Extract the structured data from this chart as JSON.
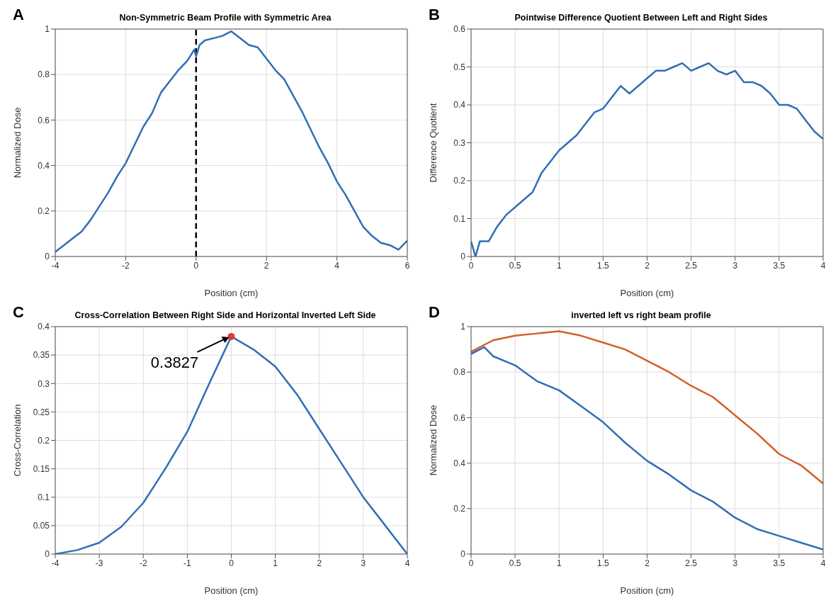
{
  "chart_data": [
    {
      "type": "line",
      "title": "Non-Symmetric Beam Profile with Symmetric Area",
      "xlabel": "Position (cm)",
      "ylabel": "Normalized Dose",
      "annotations": [
        "A"
      ],
      "xlim": [
        -4,
        6
      ],
      "xticks": [
        -4,
        -2,
        0,
        2,
        4,
        6
      ],
      "ylim": [
        0,
        1
      ],
      "yticks": [
        0,
        0.2,
        0.4,
        0.6,
        0.8,
        1
      ],
      "grid": true,
      "ref_lines": [
        {
          "axis": "x",
          "value": 0,
          "color": "#000000",
          "line_style": "dashed"
        }
      ],
      "series": [
        {
          "color": "#2f6fb5",
          "x": [
            -4,
            -3.75,
            -3.5,
            -3.25,
            -3,
            -2.75,
            -2.5,
            -2.25,
            -2,
            -1.75,
            -1.5,
            -1.25,
            -1,
            -0.75,
            -0.5,
            -0.25,
            -0.05,
            0,
            0.1,
            0.25,
            0.5,
            0.75,
            1,
            1.25,
            1.5,
            1.75,
            2,
            2.25,
            2.5,
            2.75,
            3,
            3.25,
            3.5,
            3.75,
            4,
            4.25,
            4.5,
            4.75,
            5,
            5.25,
            5.5,
            5.75,
            6
          ],
          "values": [
            0.02,
            0.05,
            0.08,
            0.11,
            0.16,
            0.22,
            0.28,
            0.35,
            0.41,
            0.49,
            0.57,
            0.63,
            0.72,
            0.77,
            0.82,
            0.86,
            0.91,
            0.88,
            0.93,
            0.95,
            0.96,
            0.97,
            0.99,
            0.96,
            0.93,
            0.92,
            0.87,
            0.82,
            0.78,
            0.71,
            0.64,
            0.56,
            0.48,
            0.41,
            0.33,
            0.27,
            0.2,
            0.13,
            0.09,
            0.06,
            0.05,
            0.03,
            0.07
          ]
        }
      ]
    },
    {
      "type": "line",
      "title": "Pointwise Difference Quotient Between Left and Right Sides",
      "xlabel": "Position (cm)",
      "ylabel": "Difference Quotient",
      "annotations": [
        "B"
      ],
      "xlim": [
        0,
        4
      ],
      "xticks": [
        0,
        0.5,
        1,
        1.5,
        2,
        2.5,
        3,
        3.5,
        4
      ],
      "ylim": [
        0,
        0.6
      ],
      "yticks": [
        0,
        0.1,
        0.2,
        0.3,
        0.4,
        0.5,
        0.6
      ],
      "grid": true,
      "series": [
        {
          "color": "#2f6fb5",
          "x": [
            0,
            0.05,
            0.1,
            0.2,
            0.3,
            0.4,
            0.5,
            0.6,
            0.7,
            0.8,
            0.9,
            1,
            1.1,
            1.2,
            1.3,
            1.4,
            1.5,
            1.6,
            1.7,
            1.8,
            1.9,
            2,
            2.1,
            2.2,
            2.3,
            2.4,
            2.5,
            2.6,
            2.7,
            2.8,
            2.9,
            3,
            3.1,
            3.2,
            3.3,
            3.4,
            3.5,
            3.6,
            3.7,
            3.8,
            3.9,
            4
          ],
          "values": [
            0.04,
            0,
            0.04,
            0.04,
            0.08,
            0.11,
            0.13,
            0.15,
            0.17,
            0.22,
            0.25,
            0.28,
            0.3,
            0.32,
            0.35,
            0.38,
            0.39,
            0.42,
            0.45,
            0.43,
            0.45,
            0.47,
            0.49,
            0.49,
            0.5,
            0.51,
            0.49,
            0.5,
            0.51,
            0.49,
            0.48,
            0.49,
            0.46,
            0.46,
            0.45,
            0.43,
            0.4,
            0.4,
            0.39,
            0.36,
            0.33,
            0.31
          ]
        }
      ]
    },
    {
      "type": "line",
      "title": "Cross-Correlation Between Right Side and Horizontal Inverted Left Side",
      "xlabel": "Position (cm)",
      "ylabel": "Cross-Correlation",
      "annotations": [
        "C",
        {
          "text": "0.3827",
          "x": 0,
          "y": 0.3827
        }
      ],
      "xlim": [
        -4,
        4
      ],
      "xticks": [
        -4,
        -3,
        -2,
        -1,
        0,
        1,
        2,
        3,
        4
      ],
      "ylim": [
        0,
        0.4
      ],
      "yticks": [
        0,
        0.05,
        0.1,
        0.15,
        0.2,
        0.25,
        0.3,
        0.35,
        0.4
      ],
      "grid": true,
      "series": [
        {
          "color": "#2f6fb5",
          "x": [
            -4,
            -3.5,
            -3,
            -2.5,
            -2,
            -1.5,
            -1,
            -0.5,
            0,
            0.5,
            1,
            1.5,
            2,
            2.5,
            3,
            3.5,
            4
          ],
          "values": [
            0,
            0.007,
            0.02,
            0.048,
            0.09,
            0.15,
            0.215,
            0.3,
            0.3827,
            0.36,
            0.33,
            0.28,
            0.22,
            0.16,
            0.1,
            0.05,
            0
          ]
        },
        {
          "type": "scatter",
          "color": "#e03c31",
          "x": [
            0
          ],
          "values": [
            0.3827
          ]
        }
      ]
    },
    {
      "type": "line",
      "title": "inverted left vs right beam profile",
      "xlabel": "Position (cm)",
      "ylabel": "Normalized Dose",
      "annotations": [
        "D"
      ],
      "xlim": [
        0,
        4
      ],
      "xticks": [
        0,
        0.5,
        1,
        1.5,
        2,
        2.5,
        3,
        3.5,
        4
      ],
      "ylim": [
        0,
        1
      ],
      "yticks": [
        0,
        0.2,
        0.4,
        0.6,
        0.8,
        1
      ],
      "grid": true,
      "series": [
        {
          "color": "#2f6fb5",
          "x": [
            0,
            0.15,
            0.25,
            0.5,
            0.75,
            1,
            1.25,
            1.5,
            1.75,
            2,
            2.25,
            2.5,
            2.75,
            3,
            3.25,
            3.5,
            3.75,
            4
          ],
          "values": [
            0.88,
            0.91,
            0.87,
            0.83,
            0.76,
            0.72,
            0.65,
            0.58,
            0.49,
            0.41,
            0.35,
            0.28,
            0.23,
            0.16,
            0.11,
            0.08,
            0.05,
            0.02
          ]
        },
        {
          "color": "#d35f27",
          "x": [
            0,
            0.25,
            0.5,
            0.75,
            1,
            1.25,
            1.5,
            1.75,
            2,
            2.25,
            2.5,
            2.75,
            3,
            3.25,
            3.5,
            3.75,
            4
          ],
          "values": [
            0.89,
            0.94,
            0.96,
            0.97,
            0.98,
            0.96,
            0.93,
            0.9,
            0.85,
            0.8,
            0.74,
            0.69,
            0.61,
            0.53,
            0.44,
            0.39,
            0.31
          ]
        }
      ]
    }
  ]
}
